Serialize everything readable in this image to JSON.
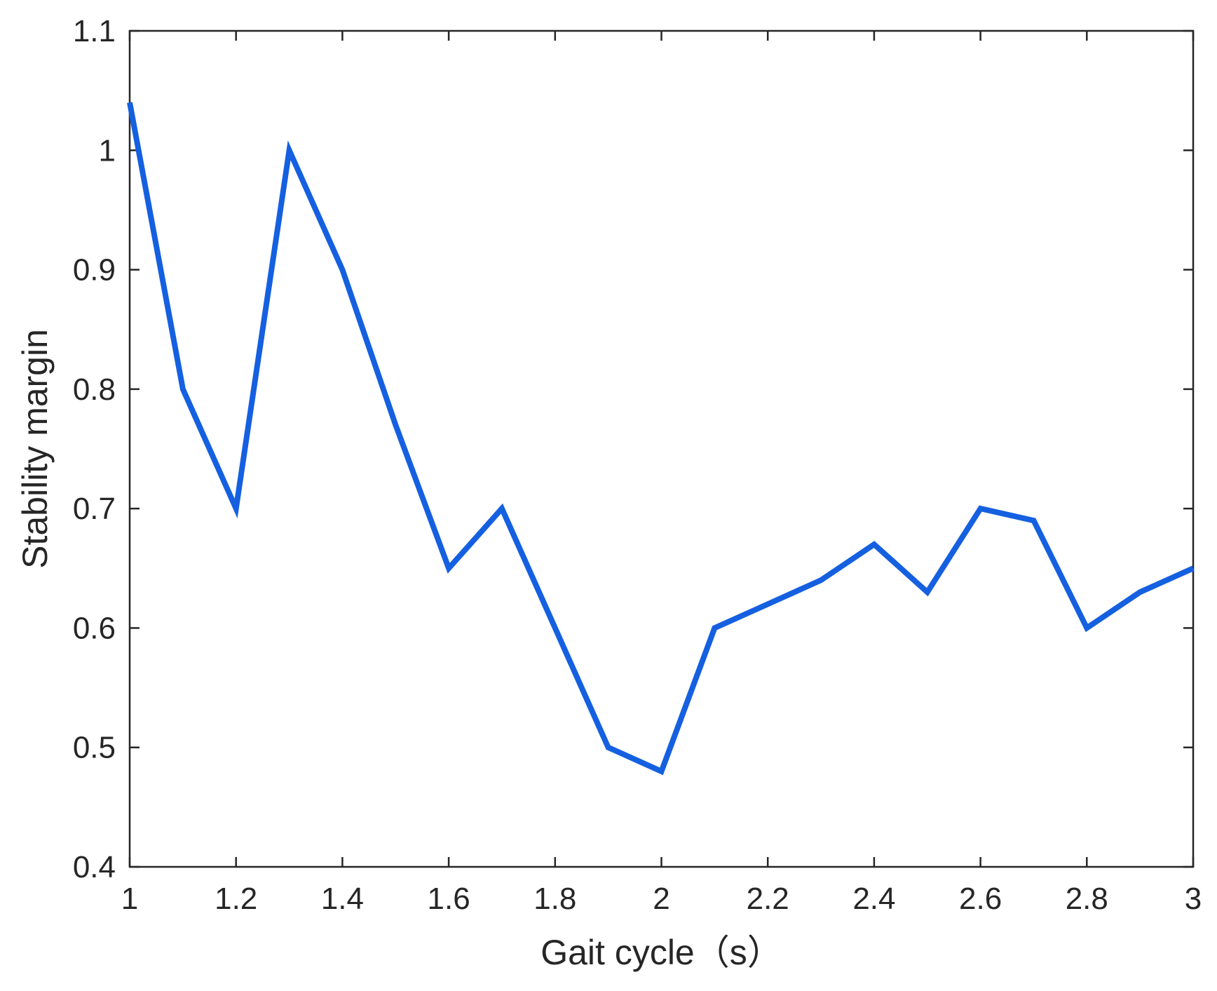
{
  "chart_data": {
    "type": "line",
    "title": "",
    "xlabel": "Gait cycle（s）",
    "ylabel": "Stability margin",
    "xlim": [
      1,
      3
    ],
    "ylim": [
      0.4,
      1.1
    ],
    "x_ticks": [
      1,
      1.2,
      1.4,
      1.6,
      1.8,
      2,
      2.2,
      2.4,
      2.6,
      2.8,
      3
    ],
    "x_tick_labels": [
      "1",
      "1.2",
      "1.4",
      "1.6",
      "1.8",
      "2",
      "2.2",
      "2.4",
      "2.6",
      "2.8",
      "3"
    ],
    "y_ticks": [
      0.4,
      0.5,
      0.6,
      0.7,
      0.8,
      0.9,
      1.0,
      1.1
    ],
    "y_tick_labels": [
      "0.4",
      "0.5",
      "0.6",
      "0.7",
      "0.8",
      "0.9",
      "1",
      "1.1"
    ],
    "grid": false,
    "series": [
      {
        "color": "#1560e0",
        "x": [
          1,
          1.1,
          1.2,
          1.3,
          1.4,
          1.5,
          1.6,
          1.7,
          1.8,
          1.9,
          2,
          2.1,
          2.2,
          2.3,
          2.4,
          2.5,
          2.6,
          2.7,
          2.8,
          2.9,
          3
        ],
        "y": [
          1.04,
          0.8,
          0.7,
          1.0,
          0.9,
          0.77,
          0.65,
          0.7,
          0.6,
          0.5,
          0.48,
          0.6,
          0.62,
          0.64,
          0.67,
          0.63,
          0.7,
          0.69,
          0.6,
          0.63,
          0.65
        ]
      }
    ]
  }
}
